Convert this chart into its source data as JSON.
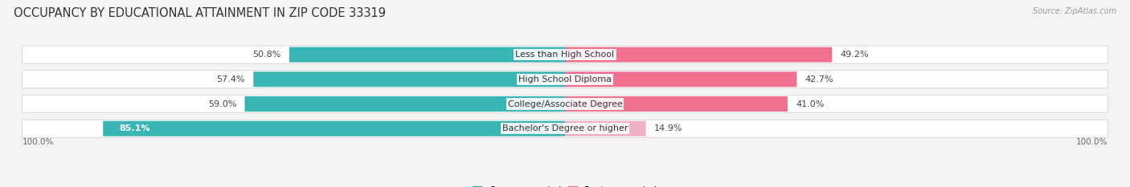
{
  "title": "OCCUPANCY BY EDUCATIONAL ATTAINMENT IN ZIP CODE 33319",
  "source": "Source: ZipAtlas.com",
  "categories": [
    "Less than High School",
    "High School Diploma",
    "College/Associate Degree",
    "Bachelor's Degree or higher"
  ],
  "owner_pct": [
    50.8,
    57.4,
    59.0,
    85.1
  ],
  "renter_pct": [
    49.2,
    42.7,
    41.0,
    14.9
  ],
  "owner_color": "#3ab5b5",
  "renter_color": "#f07090",
  "renter_color_last": "#f0b0c8",
  "bg_color": "#f4f4f4",
  "bar_bg_color": "#e4e4e4",
  "bar_height": 0.62,
  "title_fontsize": 10.5,
  "label_fontsize": 8.0,
  "pct_fontsize": 8.0,
  "axis_label_fontsize": 7.5,
  "legend_fontsize": 8.0,
  "source_fontsize": 7.0,
  "x_labels": [
    "100.0%",
    "100.0%"
  ],
  "figsize": [
    14.06,
    2.33
  ],
  "dpi": 100
}
